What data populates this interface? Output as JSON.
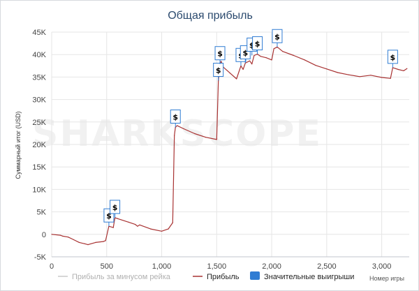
{
  "chart_data": {
    "type": "line",
    "title": "Общая прибыль",
    "xlabel": "Номер игры",
    "ylabel": "Суммарный итог (USD)",
    "xlim": [
      0,
      3250
    ],
    "ylim": [
      -5000,
      45000
    ],
    "xticks": [
      0,
      500,
      1000,
      1500,
      2000,
      2500,
      3000
    ],
    "xtick_labels": [
      "0",
      "500",
      "1,000",
      "1,500",
      "2,000",
      "2,500",
      "3,000"
    ],
    "yticks": [
      -5000,
      0,
      5000,
      10000,
      15000,
      20000,
      25000,
      30000,
      35000,
      40000,
      45000
    ],
    "ytick_labels": [
      "-5K",
      "0",
      "5K",
      "10K",
      "15K",
      "20K",
      "25K",
      "30K",
      "35K",
      "40K",
      "45K"
    ],
    "grid": true,
    "legend_position": "bottom",
    "watermark": "SHARKSCOPE",
    "series": [
      {
        "name": "Прибыль",
        "color": "#a83232",
        "x": [
          0,
          80,
          100,
          150,
          200,
          250,
          300,
          330,
          400,
          470,
          490,
          520,
          560,
          575,
          600,
          700,
          760,
          780,
          800,
          900,
          1000,
          1060,
          1100,
          1115,
          1125,
          1140,
          1200,
          1300,
          1400,
          1500,
          1515,
          1530,
          1540,
          1560,
          1620,
          1680,
          1720,
          1740,
          1760,
          1800,
          1820,
          1840,
          1870,
          1900,
          1950,
          2000,
          2020,
          2050,
          2100,
          2200,
          2300,
          2400,
          2500,
          2600,
          2700,
          2800,
          2900,
          3000,
          3080,
          3100,
          3150,
          3200,
          3230
        ],
        "y": [
          0,
          -200,
          -400,
          -600,
          -1200,
          -1800,
          -2100,
          -2300,
          -1800,
          -1600,
          -1400,
          1800,
          1500,
          3700,
          3500,
          2700,
          2200,
          1800,
          2100,
          1200,
          700,
          1200,
          2600,
          22000,
          23800,
          24200,
          23500,
          22400,
          21600,
          21100,
          34200,
          37900,
          38500,
          37200,
          35900,
          34600,
          37500,
          36700,
          38100,
          38600,
          37900,
          39800,
          40100,
          39600,
          39300,
          38800,
          41300,
          41700,
          40700,
          39800,
          38800,
          37600,
          36800,
          36000,
          35500,
          35100,
          35400,
          34900,
          34700,
          37100,
          36700,
          36400,
          36900
        ]
      },
      {
        "name": "Прибыль за минусом рейка",
        "color": "#c8c8c8",
        "x": [],
        "y": []
      },
      {
        "name": "Значительные выигрыши",
        "color": "#2f7cd3",
        "type": "marker",
        "symbol": "$",
        "x": [
          520,
          575,
          1125,
          1515,
          1530,
          1720,
          1760,
          1820,
          1870,
          2050,
          3100
        ],
        "y": [
          1800,
          3700,
          23800,
          34200,
          37900,
          37500,
          38100,
          39800,
          40100,
          41700,
          37100
        ]
      }
    ]
  }
}
